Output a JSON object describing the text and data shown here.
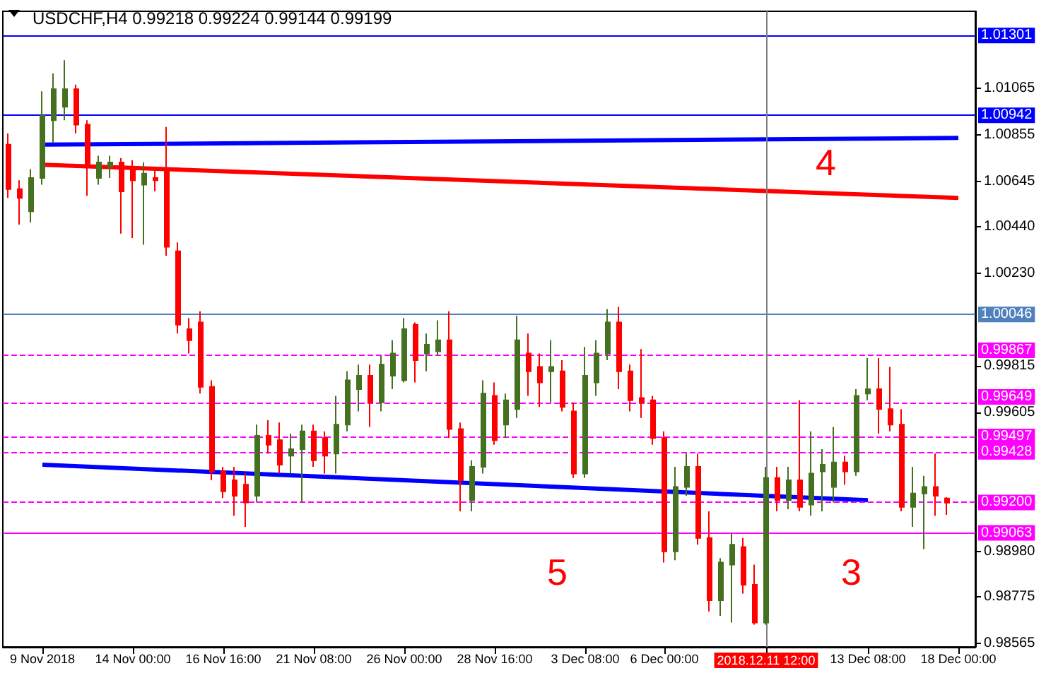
{
  "chart_data": {
    "type": "candlestick",
    "title": "USDCHF,H4 0.99218 0.99224 0.99144 0.99199",
    "categories": [
      null,
      null,
      null,
      "9 Nov 2018",
      null,
      null,
      null,
      null,
      null,
      null,
      null,
      "14 Nov 00:00",
      null,
      null,
      null,
      null,
      null,
      null,
      null,
      "16 Nov 16:00",
      null,
      null,
      null,
      null,
      null,
      null,
      null,
      "21 Nov 08:00",
      null,
      null,
      null,
      null,
      null,
      null,
      null,
      "26 Nov 00:00",
      null,
      null,
      null,
      null,
      null,
      null,
      null,
      "28 Nov 16:00",
      null,
      null,
      null,
      null,
      null,
      null,
      null,
      "3 Dec 08:00",
      null,
      null,
      null,
      null,
      null,
      null,
      "6 Dec 00:00",
      null,
      null,
      null,
      null,
      null,
      null,
      null,
      null,
      "2018.12.11 12:00",
      null,
      null,
      null,
      null,
      null,
      null,
      null,
      null,
      "13 Dec 08:00",
      null,
      null,
      null,
      null,
      null,
      null,
      null,
      "18 Dec 00:00",
      null
    ],
    "ohlc": [
      [
        1.0081,
        1.0086,
        1.0057,
        1.0061
      ],
      [
        1.0061,
        1.0065,
        1.0045,
        1.0057
      ],
      [
        1.0051,
        1.007,
        1.0046,
        1.0066
      ],
      [
        1.0066,
        1.0105,
        1.0063,
        1.0094
      ],
      [
        1.0092,
        1.0113,
        1.0082,
        1.0106
      ],
      [
        1.0098,
        1.0119,
        1.0092,
        1.0106
      ],
      [
        1.0106,
        1.0108,
        1.0086,
        1.009
      ],
      [
        1.009,
        1.0092,
        1.0058,
        1.0071
      ],
      [
        1.0066,
        1.0076,
        1.0063,
        1.0073
      ],
      [
        1.0071,
        1.0076,
        1.0066,
        1.0073
      ],
      [
        1.0073,
        1.0075,
        1.0041,
        1.006
      ],
      [
        1.0071,
        1.0074,
        1.0039,
        1.0065
      ],
      [
        1.0063,
        1.0073,
        1.0036,
        1.0068
      ],
      [
        1.0066,
        1.007,
        1.006,
        1.0065
      ],
      [
        1.007,
        1.0089,
        1.0031,
        1.0035
      ],
      [
        1.0033,
        1.0037,
        0.9996,
        1.0
      ],
      [
        0.9998,
        1.0003,
        0.9987,
        0.9993
      ],
      [
        1.0001,
        1.0006,
        0.9969,
        0.9972
      ],
      [
        0.9972,
        0.9975,
        0.993,
        0.9934
      ],
      [
        0.9934,
        0.9936,
        0.9922,
        0.9925
      ],
      [
        0.993,
        0.9936,
        0.9914,
        0.9923
      ],
      [
        0.9928,
        0.9933,
        0.9909,
        0.992
      ],
      [
        0.9923,
        0.9955,
        0.992,
        0.995
      ],
      [
        0.995,
        0.9957,
        0.9942,
        0.9946
      ],
      [
        0.9948,
        0.9956,
        0.9933,
        0.9937
      ],
      [
        0.9941,
        0.9951,
        0.9933,
        0.9944
      ],
      [
        0.9944,
        0.9955,
        0.992,
        0.9952
      ],
      [
        0.9952,
        0.9955,
        0.9936,
        0.9939
      ],
      [
        0.9949,
        0.9952,
        0.9933,
        0.9941
      ],
      [
        0.9942,
        0.9968,
        0.9933,
        0.9955
      ],
      [
        0.9955,
        0.9979,
        0.9952,
        0.9975
      ],
      [
        0.9971,
        0.9982,
        0.9961,
        0.9977
      ],
      [
        0.9977,
        0.9982,
        0.9954,
        0.9965
      ],
      [
        0.9965,
        0.9986,
        0.9961,
        0.9982
      ],
      [
        0.9977,
        0.9993,
        0.9971,
        0.9987
      ],
      [
        0.9975,
        1.0003,
        0.9974,
        0.9998
      ],
      [
        1.0,
        1.0001,
        0.9974,
        0.9984
      ],
      [
        0.9987,
        0.9996,
        0.9979,
        0.9991
      ],
      [
        0.9988,
        1.0002,
        0.9986,
        0.9993
      ],
      [
        0.9993,
        1.0006,
        0.9949,
        0.9953
      ],
      [
        0.9953,
        0.9956,
        0.9916,
        0.993
      ],
      [
        0.9921,
        0.9939,
        0.9916,
        0.9936
      ],
      [
        0.9936,
        0.9975,
        0.9933,
        0.9969
      ],
      [
        0.9968,
        0.9974,
        0.9946,
        0.9948
      ],
      [
        0.9955,
        0.9969,
        0.9949,
        0.9966
      ],
      [
        0.9962,
        1.0004,
        0.9958,
        0.9993
      ],
      [
        0.9987,
        0.9996,
        0.9968,
        0.9979
      ],
      [
        0.9981,
        0.9987,
        0.9963,
        0.9974
      ],
      [
        0.9979,
        0.9993,
        0.9965,
        0.9981
      ],
      [
        0.9979,
        0.9984,
        0.9961,
        0.9963
      ],
      [
        0.9961,
        0.9965,
        0.9931,
        0.9933
      ],
      [
        0.9933,
        0.999,
        0.9931,
        0.9977
      ],
      [
        0.9974,
        0.9993,
        0.9968,
        0.9987
      ],
      [
        0.9987,
        1.0007,
        0.9984,
        1.0001
      ],
      [
        1.0001,
        1.0008,
        0.9971,
        0.9979
      ],
      [
        0.9979,
        0.9982,
        0.9961,
        0.9966
      ],
      [
        0.9967,
        0.9989,
        0.9958,
        0.9965
      ],
      [
        0.9966,
        0.9968,
        0.9946,
        0.9949
      ],
      [
        0.9949,
        0.9952,
        0.9893,
        0.9898
      ],
      [
        0.9898,
        0.9936,
        0.9894,
        0.9927
      ],
      [
        0.9927,
        0.9942,
        0.9923,
        0.9936
      ],
      [
        0.9936,
        0.9942,
        0.9901,
        0.9904
      ],
      [
        0.9904,
        0.9916,
        0.9871,
        0.9876
      ],
      [
        0.9876,
        0.9895,
        0.9869,
        0.9893
      ],
      [
        0.9892,
        0.9906,
        0.9866,
        0.9901
      ],
      [
        0.99,
        0.9904,
        0.9879,
        0.9883
      ],
      [
        0.9883,
        0.9892,
        0.9865,
        0.9866
      ],
      [
        0.9866,
        0.9936,
        0.9865,
        0.9931
      ],
      [
        0.9931,
        0.9936,
        0.9916,
        0.9921
      ],
      [
        0.9921,
        0.9936,
        0.9917,
        0.993
      ],
      [
        0.993,
        0.9966,
        0.9916,
        0.9918
      ],
      [
        0.9919,
        0.9952,
        0.9914,
        0.9933
      ],
      [
        0.9934,
        0.9944,
        0.9916,
        0.9937
      ],
      [
        0.9927,
        0.9954,
        0.992,
        0.9938
      ],
      [
        0.9938,
        0.9941,
        0.9928,
        0.9934
      ],
      [
        0.9934,
        0.9971,
        0.9932,
        0.9968
      ],
      [
        0.9969,
        0.9985,
        0.9966,
        0.9971
      ],
      [
        0.9971,
        0.9985,
        0.9951,
        0.9962
      ],
      [
        0.9962,
        0.9981,
        0.9952,
        0.9955
      ],
      [
        0.9955,
        0.9962,
        0.9916,
        0.9918
      ],
      [
        0.9918,
        0.9936,
        0.9909,
        0.9924
      ],
      [
        0.9924,
        0.9932,
        0.9899,
        0.9927
      ],
      [
        0.9927,
        0.9942,
        0.9914,
        0.9923
      ],
      [
        0.99218,
        0.99224,
        0.99144,
        0.99199
      ],
      null,
      null
    ],
    "colors": [
      "#ff0000",
      "#ff0000",
      "#44701f",
      "#44701f",
      "#44701f",
      "#44701f",
      "#ff0000",
      "#ff0000",
      "#44701f",
      "#44701f",
      "#ff0000",
      "#ff0000",
      "#44701f",
      "#ff0000",
      "#ff0000",
      "#ff0000",
      "#ff0000",
      "#ff0000",
      "#ff0000",
      "#ff0000",
      "#ff0000",
      "#ff0000",
      "#44701f",
      "#ff0000",
      "#ff0000",
      "#44701f",
      "#44701f",
      "#ff0000",
      "#ff0000",
      "#44701f",
      "#44701f",
      "#44701f",
      "#ff0000",
      "#44701f",
      "#44701f",
      "#44701f",
      "#ff0000",
      "#44701f",
      "#44701f",
      "#ff0000",
      "#ff0000",
      "#44701f",
      "#44701f",
      "#ff0000",
      "#44701f",
      "#44701f",
      "#ff0000",
      "#ff0000",
      "#44701f",
      "#ff0000",
      "#ff0000",
      "#44701f",
      "#44701f",
      "#44701f",
      "#ff0000",
      "#ff0000",
      "#ff0000",
      "#ff0000",
      "#ff0000",
      "#44701f",
      "#44701f",
      "#ff0000",
      "#ff0000",
      "#44701f",
      "#44701f",
      "#ff0000",
      "#ff0000",
      "#44701f",
      "#ff0000",
      "#44701f",
      "#ff0000",
      "#44701f",
      "#44701f",
      "#44701f",
      "#ff0000",
      "#44701f",
      "#44701f",
      "#ff0000",
      "#ff0000",
      "#ff0000",
      "#44701f",
      "#44701f",
      "#ff0000",
      "#ff0000",
      null,
      null
    ],
    "series": [
      {
        "type": "line",
        "color": "#0000ff",
        "x": [
          "9 Nov 2018",
          "18 Dec 00:00"
        ],
        "values": [
          1.0081,
          1.0084
        ]
      },
      {
        "type": "line",
        "color": "#ff0000",
        "x": [
          "9 Nov 2018",
          "18 Dec 00:00"
        ],
        "values": [
          1.0072,
          1.0057
        ]
      },
      {
        "type": "line",
        "color": "#0000ff",
        "x": [
          "9 Nov 2018",
          "13 Dec 08:00"
        ],
        "values": [
          0.9937,
          0.9921
        ]
      }
    ],
    "ylim": [
      0.9855,
      1.0141
    ],
    "yticks": [
      {
        "value": 0.98565,
        "label": "0.98565"
      },
      {
        "value": 0.98775,
        "label": "0.98775"
      },
      {
        "value": 0.9898,
        "label": "0.98980"
      },
      {
        "value": 0.99605,
        "label": "0.99605"
      },
      {
        "value": 0.99815,
        "label": "0.99815"
      },
      {
        "value": 1.0023,
        "label": "1.00230"
      },
      {
        "value": 1.0044,
        "label": "1.00440"
      },
      {
        "value": 1.00645,
        "label": "1.00645"
      },
      {
        "value": 1.00855,
        "label": "1.00855"
      },
      {
        "value": 1.01065,
        "label": "1.01065"
      }
    ],
    "ref_lines": [
      {
        "axis": "y",
        "value": 1.01301,
        "label": "1.01301",
        "color": "#0000ff",
        "line_style": "solid"
      },
      {
        "axis": "y",
        "value": 1.00942,
        "label": "1.00942",
        "color": "#0000ff",
        "line_style": "solid"
      },
      {
        "axis": "y",
        "value": 1.00046,
        "label": "1.00046",
        "color": "#4f81bd",
        "line_style": "solid"
      },
      {
        "axis": "y",
        "value": 0.99867,
        "label": "0.99867",
        "color": "#ff00ff",
        "line_style": "dashed"
      },
      {
        "axis": "y",
        "value": 0.99649,
        "label": "0.99649",
        "color": "#ff00ff",
        "line_style": "dashed"
      },
      {
        "axis": "y",
        "value": 0.99497,
        "label": "0.99497",
        "color": "#ff00ff",
        "line_style": "dashed"
      },
      {
        "axis": "y",
        "value": 0.99428,
        "label": "0.99428",
        "color": "#ff00ff",
        "line_style": "dashed"
      },
      {
        "axis": "y",
        "value": 0.992,
        "label": "0.99200",
        "color": "#ff00ff",
        "line_style": "dashed"
      },
      {
        "axis": "y",
        "value": 0.99063,
        "label": "0.99063",
        "color": "#ff00ff",
        "line_style": "solid"
      },
      {
        "axis": "x",
        "value": "2018.12.11 12:00",
        "color": "#808080",
        "line_style": "solid"
      }
    ],
    "annotations": [
      "4",
      "5",
      "3"
    ],
    "grid": false
  }
}
